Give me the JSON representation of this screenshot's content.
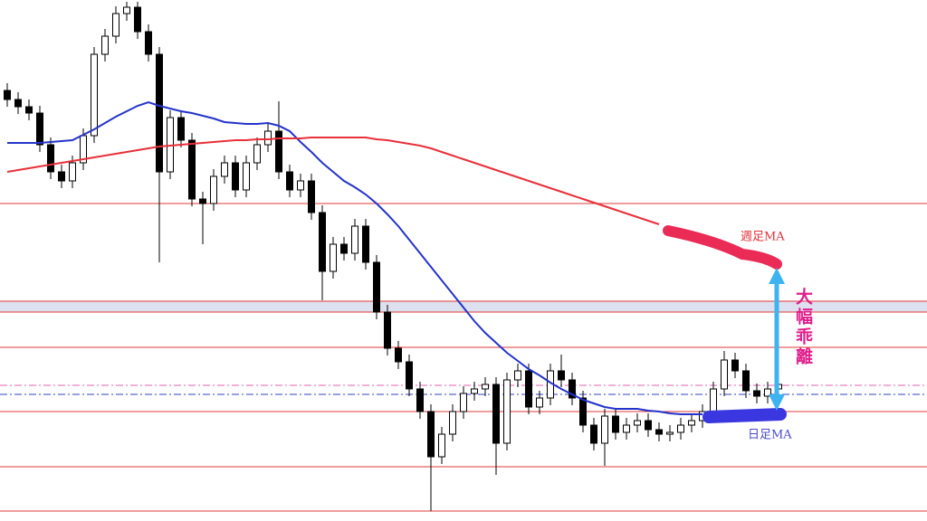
{
  "chart_data": {
    "type": "candlestick",
    "ylim": [
      0,
      576
    ],
    "open": [
      476,
      466,
      458,
      451,
      416,
      386,
      376,
      396,
      426,
      516,
      536,
      561,
      568,
      541,
      516,
      386,
      446,
      421,
      356,
      351,
      381,
      396,
      366,
      396,
      416,
      431,
      386,
      366,
      376,
      341,
      276,
      306,
      296,
      326,
      286,
      231,
      191,
      176,
      146,
      121,
      71,
      96,
      121,
      141,
      146,
      151,
      86,
      156,
      166,
      126,
      136,
      166,
      156,
      136,
      106,
      86,
      116,
      98,
      106,
      111,
      101,
      96,
      98,
      106,
      111,
      121,
      146,
      178,
      166,
      144,
      138,
      146
    ],
    "high": [
      484,
      474,
      466,
      459,
      424,
      394,
      404,
      434,
      524,
      544,
      569,
      574,
      574,
      549,
      524,
      454,
      454,
      429,
      364,
      389,
      404,
      404,
      404,
      424,
      439,
      464,
      394,
      384,
      384,
      349,
      314,
      314,
      334,
      334,
      294,
      239,
      199,
      184,
      154,
      129,
      104,
      129,
      149,
      154,
      159,
      159,
      164,
      174,
      174,
      144,
      174,
      184,
      164,
      144,
      114,
      124,
      124,
      114,
      119,
      119,
      109,
      106,
      114,
      119,
      129,
      154,
      188,
      186,
      174,
      152,
      154,
      159
    ],
    "low": [
      458,
      450,
      443,
      408,
      378,
      368,
      368,
      388,
      418,
      508,
      528,
      553,
      533,
      508,
      286,
      378,
      413,
      348,
      306,
      343,
      373,
      358,
      358,
      388,
      408,
      378,
      358,
      358,
      333,
      244,
      268,
      288,
      288,
      278,
      223,
      183,
      168,
      138,
      113,
      11,
      63,
      88,
      113,
      133,
      138,
      51,
      78,
      148,
      118,
      118,
      128,
      148,
      128,
      98,
      78,
      61,
      90,
      90,
      98,
      93,
      88,
      88,
      90,
      98,
      103,
      113,
      138,
      158,
      136,
      130,
      130,
      138
    ],
    "close": [
      466,
      458,
      451,
      416,
      386,
      376,
      396,
      426,
      516,
      536,
      561,
      568,
      541,
      516,
      386,
      446,
      421,
      356,
      351,
      381,
      396,
      366,
      396,
      416,
      431,
      386,
      366,
      376,
      341,
      276,
      306,
      296,
      326,
      286,
      231,
      191,
      176,
      146,
      121,
      71,
      96,
      121,
      141,
      146,
      151,
      86,
      156,
      166,
      126,
      136,
      166,
      156,
      136,
      106,
      86,
      116,
      98,
      106,
      111,
      101,
      96,
      98,
      106,
      111,
      121,
      146,
      178,
      166,
      144,
      138,
      146,
      151
    ],
    "series": [
      {
        "name": "週足MA",
        "color": "#e8303a",
        "values": [
          386,
          388,
          390,
          392,
          394,
          396,
          398,
          400,
          402,
          404,
          406,
          408,
          410,
          412,
          414,
          415,
          416,
          417,
          418,
          419,
          420,
          421,
          421,
          422,
          422,
          423,
          423,
          423,
          424,
          424,
          424,
          424,
          424,
          424,
          422,
          421,
          419,
          417,
          415,
          412,
          408,
          404,
          400,
          396,
          392,
          388,
          384,
          380,
          376,
          372,
          368,
          364,
          360,
          356,
          352,
          348,
          344,
          340,
          336,
          332,
          328,
          null,
          null,
          null,
          null,
          null,
          null,
          null,
          null,
          null,
          null,
          null
        ]
      },
      {
        "name": "日足MA",
        "color": "#2433c9",
        "values": [
          418,
          418,
          418,
          418,
          419,
          420,
          421,
          427,
          433,
          440,
          447,
          453,
          459,
          463,
          459,
          456,
          453,
          451,
          448,
          445,
          441,
          440,
          439,
          439,
          440,
          437,
          431,
          419,
          408,
          396,
          386,
          376,
          369,
          361,
          351,
          339,
          326,
          311,
          296,
          281,
          266,
          251,
          236,
          221,
          208,
          197,
          186,
          177,
          168,
          161,
          153,
          146,
          140,
          134,
          130,
          126,
          124,
          124,
          124,
          122,
          121,
          119,
          118,
          118,
          118,
          null,
          null,
          null,
          null,
          null,
          null,
          null
        ]
      }
    ],
    "hlines": [
      351,
      243,
      231,
      192,
      121,
      60,
      11
    ],
    "hline_color": "#e03a3a",
    "zone": [
      231,
      243
    ],
    "dashed_lines": [
      {
        "value": 150,
        "color": "#e060b0"
      },
      {
        "value": 140,
        "color": "#3040c0"
      }
    ],
    "annotation": "大幅乖離"
  }
}
